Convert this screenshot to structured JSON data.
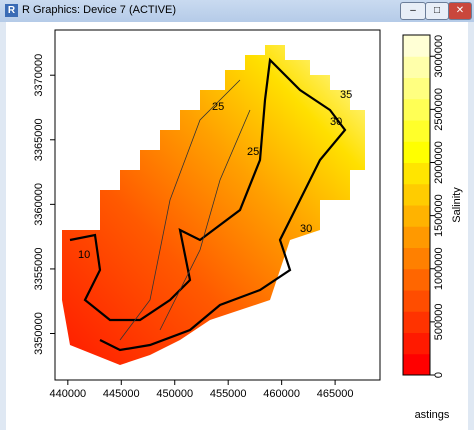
{
  "window": {
    "title": "R Graphics: Device 7 (ACTIVE)"
  },
  "chart_data": {
    "type": "raster",
    "x_label": "astings",
    "xlim": [
      438800,
      469200
    ],
    "xticks": [
      440000,
      445000,
      450000,
      455000,
      460000,
      465000
    ],
    "ylim": [
      3346400,
      3373500
    ],
    "yticks": [
      3350000,
      3355000,
      3360000,
      3365000,
      3370000
    ],
    "colorbar": {
      "label": "Salinity",
      "lim": [
        0,
        3200000
      ],
      "ticks": [
        0,
        500000,
        1000000,
        1500000,
        2000000,
        2500000,
        3000000
      ],
      "colors": [
        "#ff0000",
        "#ff1a00",
        "#ff3300",
        "#ff4d00",
        "#ff6600",
        "#ff8000",
        "#ff9900",
        "#ffb300",
        "#ffcc00",
        "#ffe500",
        "#ffff00",
        "#ffff2a",
        "#ffff55",
        "#ffff80",
        "#ffffaa",
        "#ffffd5"
      ]
    },
    "annotations": [
      "25",
      "25",
      "30",
      "35",
      "30",
      "10"
    ]
  }
}
